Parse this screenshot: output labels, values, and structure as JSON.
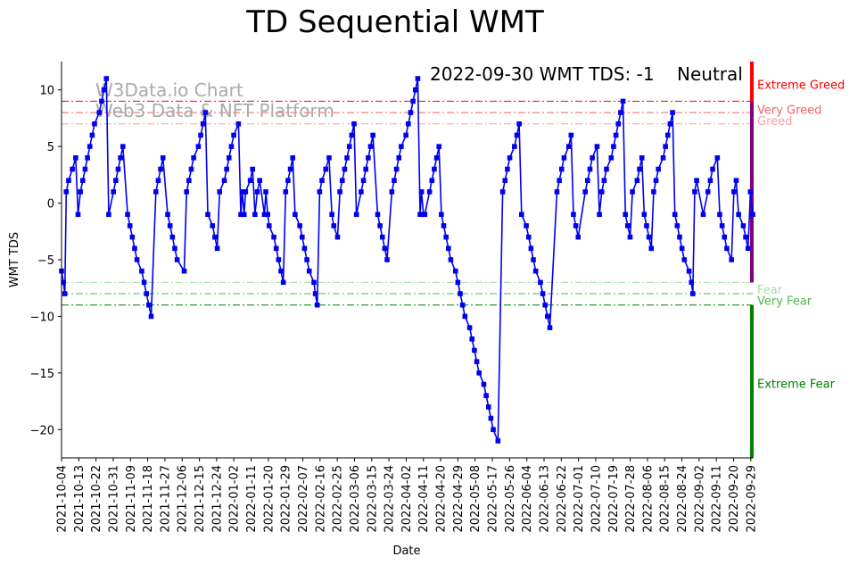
{
  "chart_data": {
    "type": "line",
    "title": "TD Sequential WMT",
    "xlabel": "Date",
    "ylabel": "WMT TDS",
    "ylim": [
      -22.5,
      12.5
    ],
    "y_ticks": [
      -20,
      -15,
      -10,
      -5,
      0,
      5,
      10
    ],
    "x_start": "2021-10-04",
    "x_end": "2022-09-30",
    "x_tick_labels": [
      "2021-10-04",
      "2021-10-13",
      "2021-10-22",
      "2021-10-31",
      "2021-11-09",
      "2021-11-18",
      "2021-11-27",
      "2021-12-06",
      "2021-12-15",
      "2021-12-24",
      "2022-01-02",
      "2022-01-11",
      "2022-01-20",
      "2022-01-29",
      "2022-02-07",
      "2022-02-16",
      "2022-02-25",
      "2022-03-06",
      "2022-03-15",
      "2022-03-24",
      "2022-04-02",
      "2022-04-11",
      "2022-04-20",
      "2022-04-29",
      "2022-05-08",
      "2022-05-17",
      "2022-05-26",
      "2022-06-04",
      "2022-06-13",
      "2022-06-22",
      "2022-07-01",
      "2022-07-10",
      "2022-07-19",
      "2022-07-28",
      "2022-08-06",
      "2022-08-15",
      "2022-08-24",
      "2022-09-02",
      "2022-09-11",
      "2022-09-20",
      "2022-09-29"
    ],
    "series": [
      {
        "name": "WMT TDS",
        "color": "#0000ee",
        "points": [
          [
            0,
            -6
          ],
          [
            0.4,
            -7
          ],
          [
            0.7,
            -8
          ],
          [
            1,
            1
          ],
          [
            1.5,
            2
          ],
          [
            2.3,
            3
          ],
          [
            3,
            4
          ],
          [
            3.5,
            -1
          ],
          [
            4,
            1
          ],
          [
            4.5,
            2
          ],
          [
            5,
            3
          ],
          [
            5.5,
            4
          ],
          [
            6,
            5
          ],
          [
            6.5,
            6
          ],
          [
            7,
            7
          ],
          [
            8,
            8
          ],
          [
            8.5,
            9
          ],
          [
            9,
            10
          ],
          [
            9.5,
            11
          ],
          [
            10,
            -1
          ],
          [
            11,
            1
          ],
          [
            11.5,
            2
          ],
          [
            12,
            3
          ],
          [
            12.5,
            4
          ],
          [
            13,
            5
          ],
          [
            14,
            -1
          ],
          [
            14.5,
            -2
          ],
          [
            15,
            -3
          ],
          [
            15.5,
            -4
          ],
          [
            16,
            -5
          ],
          [
            17,
            -6
          ],
          [
            17.5,
            -7
          ],
          [
            18,
            -8
          ],
          [
            18.5,
            -9
          ],
          [
            19,
            -10
          ],
          [
            20,
            1
          ],
          [
            20.5,
            2
          ],
          [
            21,
            3
          ],
          [
            21.5,
            4
          ],
          [
            22.5,
            -1
          ],
          [
            23,
            -2
          ],
          [
            23.5,
            -3
          ],
          [
            24,
            -4
          ],
          [
            24.5,
            -5
          ],
          [
            26,
            -6
          ],
          [
            26.5,
            1
          ],
          [
            27,
            2
          ],
          [
            27.5,
            3
          ],
          [
            28,
            4
          ],
          [
            29,
            5
          ],
          [
            29.5,
            6
          ],
          [
            30,
            7
          ],
          [
            30.5,
            8
          ],
          [
            31,
            -1
          ],
          [
            32,
            -2
          ],
          [
            32.5,
            -3
          ],
          [
            33,
            -4
          ],
          [
            33.5,
            1
          ],
          [
            34.5,
            2
          ],
          [
            35,
            3
          ],
          [
            35.5,
            4
          ],
          [
            36,
            5
          ],
          [
            36.5,
            6
          ],
          [
            37.5,
            7
          ],
          [
            38,
            -1
          ],
          [
            38.3,
            1
          ],
          [
            38.7,
            -1
          ],
          [
            39,
            1
          ],
          [
            40,
            2
          ],
          [
            40.5,
            3
          ],
          [
            41,
            -1
          ],
          [
            41.5,
            1
          ],
          [
            42,
            2
          ],
          [
            43,
            -1
          ],
          [
            43.3,
            1
          ],
          [
            43.7,
            -1
          ],
          [
            44,
            -2
          ],
          [
            45,
            -3
          ],
          [
            45.5,
            -4
          ],
          [
            46,
            -5
          ],
          [
            46.5,
            -6
          ],
          [
            47,
            -7
          ],
          [
            47.5,
            1
          ],
          [
            48,
            2
          ],
          [
            48.5,
            3
          ],
          [
            49,
            4
          ],
          [
            49.5,
            -1
          ],
          [
            50.5,
            -2
          ],
          [
            51,
            -3
          ],
          [
            51.5,
            -4
          ],
          [
            52,
            -5
          ],
          [
            52.5,
            -6
          ],
          [
            53.5,
            -7
          ],
          [
            53.8,
            -8
          ],
          [
            54.2,
            -9
          ],
          [
            54.7,
            1
          ],
          [
            55.2,
            2
          ],
          [
            56,
            3
          ],
          [
            56.7,
            4
          ],
          [
            57.3,
            -1
          ],
          [
            57.7,
            -2
          ],
          [
            58.5,
            -3
          ],
          [
            59,
            1
          ],
          [
            59.5,
            2
          ],
          [
            60,
            3
          ],
          [
            60.5,
            4
          ],
          [
            61,
            5
          ],
          [
            61.5,
            6
          ],
          [
            62,
            7
          ],
          [
            62.5,
            -1
          ],
          [
            63.5,
            1
          ],
          [
            64,
            2
          ],
          [
            64.5,
            3
          ],
          [
            65,
            4
          ],
          [
            65.5,
            5
          ],
          [
            66,
            6
          ],
          [
            67,
            -1
          ],
          [
            67.5,
            -2
          ],
          [
            68,
            -3
          ],
          [
            68.5,
            -4
          ],
          [
            69,
            -5
          ],
          [
            70,
            1
          ],
          [
            70.5,
            2
          ],
          [
            71,
            3
          ],
          [
            71.5,
            4
          ],
          [
            72,
            5
          ],
          [
            73,
            6
          ],
          [
            73.5,
            7
          ],
          [
            74,
            8
          ],
          [
            74.5,
            9
          ],
          [
            75,
            10
          ],
          [
            75.5,
            11
          ],
          [
            76,
            -1
          ],
          [
            76.3,
            1
          ],
          [
            76.7,
            -1
          ],
          [
            77,
            -1
          ],
          [
            78,
            1
          ],
          [
            78.5,
            2
          ],
          [
            79,
            3
          ],
          [
            79.5,
            4
          ],
          [
            80,
            5
          ],
          [
            80.5,
            -1
          ],
          [
            81,
            -2
          ],
          [
            81.5,
            -3
          ],
          [
            82,
            -4
          ],
          [
            82.5,
            -5
          ],
          [
            83.5,
            -6
          ],
          [
            84,
            -7
          ],
          [
            84.5,
            -8
          ],
          [
            85,
            -9
          ],
          [
            85.5,
            -10
          ],
          [
            86.5,
            -11
          ],
          [
            87,
            -12
          ],
          [
            87.5,
            -13
          ],
          [
            88,
            -14
          ],
          [
            88.5,
            -15
          ],
          [
            89.5,
            -16
          ],
          [
            90,
            -17
          ],
          [
            90.5,
            -18
          ],
          [
            91,
            -19
          ],
          [
            91.5,
            -20
          ],
          [
            92.5,
            -21
          ],
          [
            93.5,
            1
          ],
          [
            94,
            2
          ],
          [
            94.5,
            3
          ],
          [
            95,
            4
          ],
          [
            96,
            5
          ],
          [
            96.5,
            6
          ],
          [
            97,
            7
          ],
          [
            97.5,
            -1
          ],
          [
            98.5,
            -2
          ],
          [
            99,
            -3
          ],
          [
            99.5,
            -4
          ],
          [
            100,
            -5
          ],
          [
            100.5,
            -6
          ],
          [
            101.5,
            -7
          ],
          [
            102,
            -8
          ],
          [
            102.5,
            -9
          ],
          [
            103,
            -10
          ],
          [
            103.5,
            -11
          ],
          [
            105,
            1
          ],
          [
            105.5,
            2
          ],
          [
            106,
            3
          ],
          [
            106.5,
            4
          ],
          [
            107.5,
            5
          ],
          [
            108,
            6
          ],
          [
            108.5,
            -1
          ],
          [
            109,
            -2
          ],
          [
            109.5,
            -3
          ],
          [
            111,
            1
          ],
          [
            111.5,
            2
          ],
          [
            112,
            3
          ],
          [
            112.5,
            4
          ],
          [
            113.5,
            5
          ],
          [
            114,
            -1
          ],
          [
            114.5,
            1
          ],
          [
            115,
            2
          ],
          [
            115.5,
            3
          ],
          [
            116.5,
            4
          ],
          [
            117,
            5
          ],
          [
            117.5,
            6
          ],
          [
            118,
            7
          ],
          [
            118.5,
            8
          ],
          [
            119,
            9
          ],
          [
            119.5,
            -1
          ],
          [
            120,
            -2
          ],
          [
            120.5,
            -3
          ],
          [
            121,
            1
          ],
          [
            122,
            2
          ],
          [
            122.5,
            3
          ],
          [
            123,
            4
          ],
          [
            123.5,
            -1
          ],
          [
            124,
            -2
          ],
          [
            124.5,
            -3
          ],
          [
            125,
            -4
          ],
          [
            125.5,
            1
          ],
          [
            126,
            2
          ],
          [
            126.5,
            3
          ],
          [
            127.5,
            4
          ],
          [
            128,
            5
          ],
          [
            128.5,
            6
          ],
          [
            129,
            7
          ],
          [
            129.5,
            8
          ],
          [
            130,
            -1
          ],
          [
            130.5,
            -2
          ],
          [
            131,
            -3
          ],
          [
            131.5,
            -4
          ],
          [
            132,
            -5
          ],
          [
            133,
            -6
          ],
          [
            133.5,
            -7
          ],
          [
            133.8,
            -8
          ],
          [
            134.2,
            1
          ],
          [
            134.6,
            2
          ],
          [
            136,
            -1
          ],
          [
            137,
            1
          ],
          [
            137.5,
            2
          ],
          [
            138,
            3
          ],
          [
            139,
            4
          ],
          [
            139.5,
            -1
          ],
          [
            140,
            -2
          ],
          [
            140.5,
            -3
          ],
          [
            141,
            -4
          ],
          [
            142,
            -5
          ],
          [
            142.5,
            1
          ],
          [
            143,
            2
          ],
          [
            143.5,
            -1
          ],
          [
            144.5,
            -2
          ],
          [
            145,
            -3
          ],
          [
            145.5,
            -4
          ],
          [
            146,
            1
          ],
          [
            146.5,
            -1
          ]
        ]
      }
    ],
    "levels": [
      {
        "name": "Extreme Greed",
        "y": 9,
        "color": "#ff0000",
        "label_y": 10.5
      },
      {
        "name": "Very Greed",
        "y": 8,
        "color": "#f26262",
        "label_y": 8.3
      },
      {
        "name": "Greed",
        "y": 7,
        "color": "#f4a3a3",
        "label_y": 7.3
      },
      {
        "name": "Fear",
        "y": -7,
        "color": "#a8dca8",
        "label_y": -7.6
      },
      {
        "name": "Very Fear",
        "y": -8,
        "color": "#4cbb4c",
        "label_y": -8.6
      },
      {
        "name": "Extreme Fear",
        "y": -9,
        "color": "#008000",
        "label_y": -15.9
      }
    ],
    "zone_bar": [
      {
        "from": 9,
        "to": 12.5,
        "color": "#ff0000"
      },
      {
        "from": -7,
        "to": 9,
        "color": "#800080"
      },
      {
        "from": -22.5,
        "to": -9,
        "color": "#008000"
      }
    ],
    "annotation": {
      "text": "2022-09-30 WMT TDS: -1",
      "status": "Neutral",
      "status_color": "#800080"
    },
    "watermark": [
      "W3Data.io Chart",
      "Web3 Data & NFT Platform"
    ]
  }
}
